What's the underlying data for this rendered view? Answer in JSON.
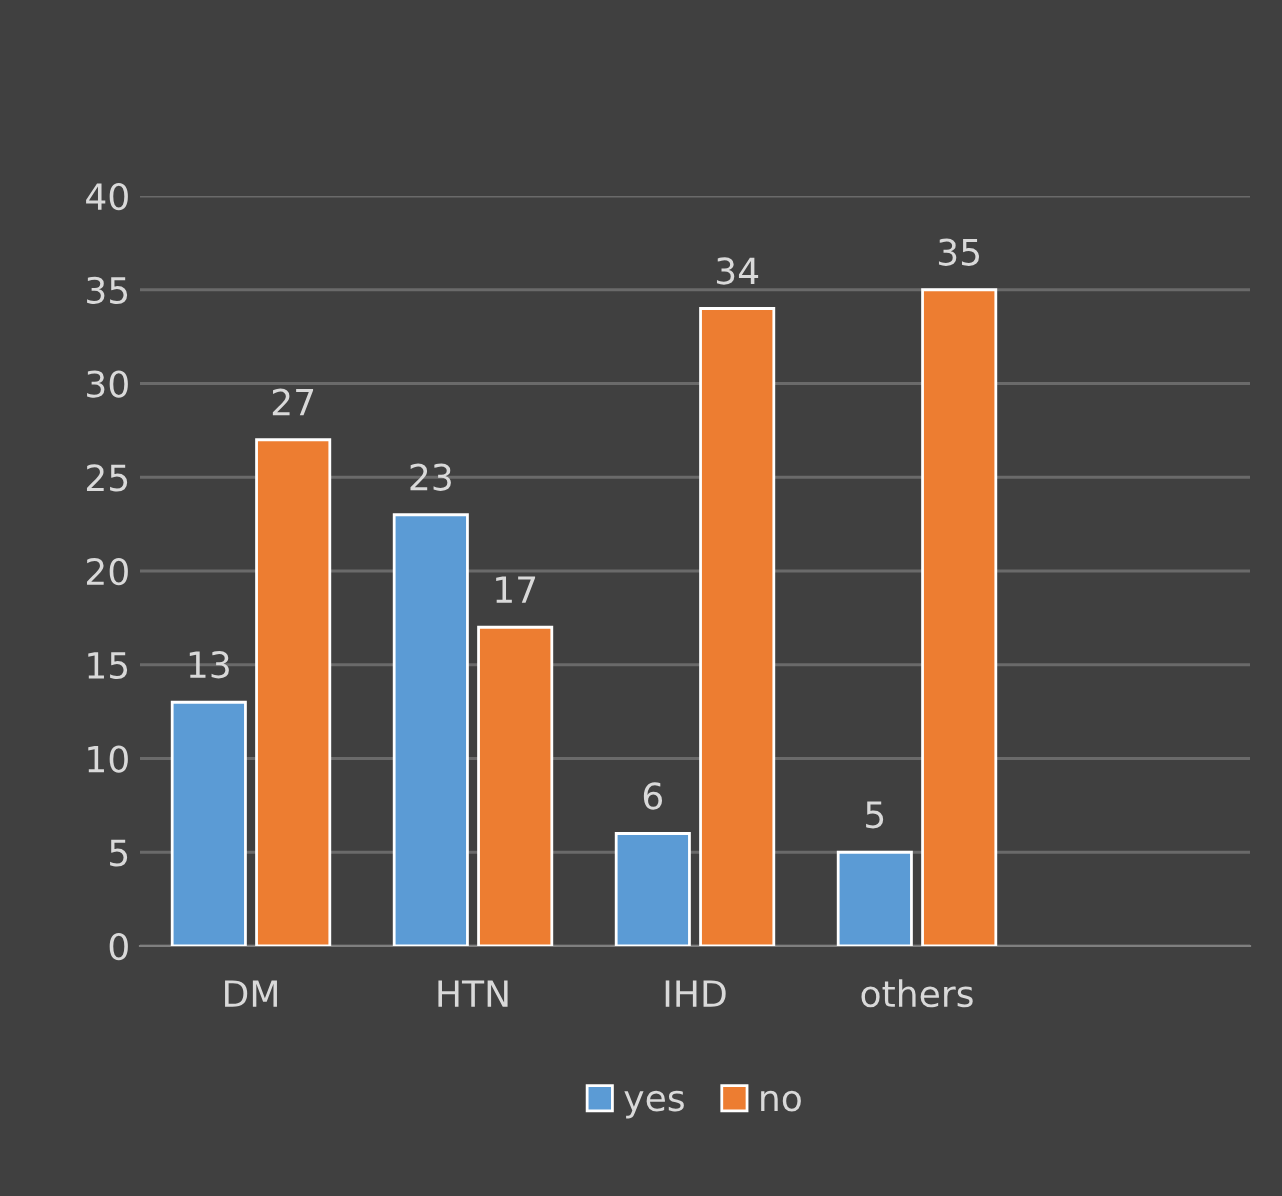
{
  "chart_data": {
    "type": "bar",
    "categories": [
      "DM",
      "HTN",
      "IHD",
      "others",
      null
    ],
    "series": [
      {
        "name": "yes",
        "color": "#5b9bd5",
        "values": [
          13,
          23,
          6,
          5,
          null
        ]
      },
      {
        "name": "no",
        "color": "#ed7d31",
        "values": [
          27,
          17,
          34,
          35,
          null
        ]
      }
    ],
    "ylim": [
      0,
      40
    ],
    "yticks": [
      0,
      5,
      10,
      15,
      20,
      25,
      30,
      35,
      40
    ],
    "grid": "y",
    "legend": "bottom",
    "data_labels": true
  }
}
